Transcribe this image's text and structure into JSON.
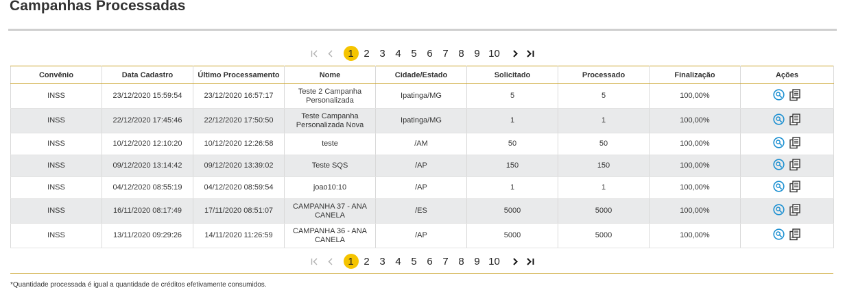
{
  "page": {
    "title": "Campanhas Processadas"
  },
  "pagination": {
    "first_icon": "first-page-icon",
    "prev_icon": "prev-page-icon",
    "next_icon": "next-page-icon",
    "last_icon": "last-page-icon",
    "pages": [
      "1",
      "2",
      "3",
      "4",
      "5",
      "6",
      "7",
      "8",
      "9",
      "10"
    ],
    "current": "1",
    "active_color": "#f5c400"
  },
  "table": {
    "columns": [
      "Convênio",
      "Data Cadastro",
      "Último Processamento",
      "Nome",
      "Cidade/Estado",
      "Solicitado",
      "Processado",
      "Finalização",
      "Ações"
    ],
    "rows": [
      {
        "convenio": "INSS",
        "data_cadastro": "23/12/2020 15:59:54",
        "ultimo_processamento": "23/12/2020 16:57:17",
        "nome": "Teste 2 Campanha Personalizada",
        "cidade_estado": "Ipatinga/MG",
        "solicitado": "5",
        "processado": "5",
        "finalizacao": "100,00%"
      },
      {
        "convenio": "INSS",
        "data_cadastro": "22/12/2020 17:45:46",
        "ultimo_processamento": "22/12/2020 17:50:50",
        "nome": "Teste Campanha Personalizada Nova",
        "cidade_estado": "Ipatinga/MG",
        "solicitado": "1",
        "processado": "1",
        "finalizacao": "100,00%"
      },
      {
        "convenio": "INSS",
        "data_cadastro": "10/12/2020 12:10:20",
        "ultimo_processamento": "10/12/2020 12:26:58",
        "nome": "teste",
        "cidade_estado": "/AM",
        "solicitado": "50",
        "processado": "50",
        "finalizacao": "100,00%"
      },
      {
        "convenio": "INSS",
        "data_cadastro": "09/12/2020 13:14:42",
        "ultimo_processamento": "09/12/2020 13:39:02",
        "nome": "Teste SQS",
        "cidade_estado": "/AP",
        "solicitado": "150",
        "processado": "150",
        "finalizacao": "100,00%"
      },
      {
        "convenio": "INSS",
        "data_cadastro": "04/12/2020 08:55:19",
        "ultimo_processamento": "04/12/2020 08:59:54",
        "nome": "joao10:10",
        "cidade_estado": "/AP",
        "solicitado": "1",
        "processado": "1",
        "finalizacao": "100,00%"
      },
      {
        "convenio": "INSS",
        "data_cadastro": "16/11/2020 08:17:49",
        "ultimo_processamento": "17/11/2020 08:51:07",
        "nome": "CAMPANHA 37 - ANA CANELA",
        "cidade_estado": "/ES",
        "solicitado": "5000",
        "processado": "5000",
        "finalizacao": "100,00%"
      },
      {
        "convenio": "INSS",
        "data_cadastro": "13/11/2020 09:29:26",
        "ultimo_processamento": "14/11/2020 11:26:59",
        "nome": "CAMPANHA 36 - ANA CANELA",
        "cidade_estado": "/AP",
        "solicitado": "5000",
        "processado": "5000",
        "finalizacao": "100,00%"
      }
    ],
    "actions_icons": [
      "magnifier-icon",
      "report-icon"
    ]
  },
  "footnote": "*Quantidade processada é igual a quantidade de créditos efetivamente consumidos.",
  "colors": {
    "accent_line": "#c9a227",
    "alt_row": "#e9eaeb",
    "icon_blue": "#1a8fd1"
  }
}
